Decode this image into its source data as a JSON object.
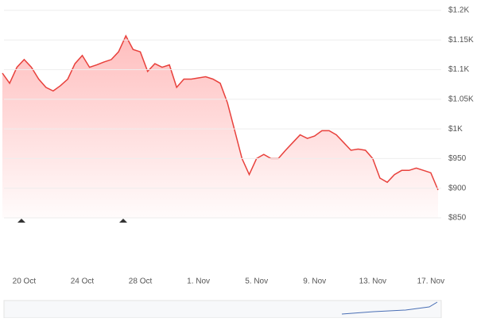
{
  "chart_data": {
    "type": "line",
    "categories": [
      null,
      null,
      null,
      "20 Oct",
      null,
      null,
      null,
      null,
      null,
      null,
      null,
      "24 Oct",
      null,
      null,
      null,
      null,
      null,
      null,
      null,
      "28 Oct",
      null,
      null,
      null,
      null,
      null,
      null,
      null,
      "1. Nov",
      null,
      null,
      null,
      null,
      null,
      null,
      null,
      "5. Nov",
      null,
      null,
      null,
      null,
      null,
      null,
      null,
      "9. Nov",
      null,
      null,
      null,
      null,
      null,
      null,
      null,
      "13. Nov",
      null,
      null,
      null,
      null,
      null,
      null,
      null,
      "17. Nov",
      null
    ],
    "series": [
      {
        "color": "#e8413c",
        "values": [
          1094,
          1077,
          1104,
          1117,
          1104,
          1084,
          1070,
          1064,
          1073,
          1084,
          1110,
          1124,
          1104,
          1108,
          1113,
          1117,
          1130,
          1157,
          1134,
          1130,
          1097,
          1110,
          1104,
          1108,
          1070,
          1084,
          1084,
          1086,
          1088,
          1084,
          1077,
          1044,
          997,
          950,
          923,
          950,
          957,
          950,
          950,
          964,
          977,
          990,
          984,
          988,
          997,
          997,
          990,
          977,
          964,
          966,
          964,
          950,
          917,
          910,
          923,
          930,
          930,
          934,
          930,
          926,
          897
        ]
      }
    ],
    "ylim": [
      850,
      1200
    ],
    "yticks": [
      {
        "value": 850,
        "label": "$850"
      },
      {
        "value": 900,
        "label": "$900"
      },
      {
        "value": 950,
        "label": "$950"
      },
      {
        "value": 1000,
        "label": "$1K"
      },
      {
        "value": 1050,
        "label": "$1.05K"
      },
      {
        "value": 1100,
        "label": "$1.1K"
      },
      {
        "value": 1150,
        "label": "$1.15K"
      },
      {
        "value": 1200,
        "label": "$1.2K"
      }
    ],
    "grid": true
  }
}
